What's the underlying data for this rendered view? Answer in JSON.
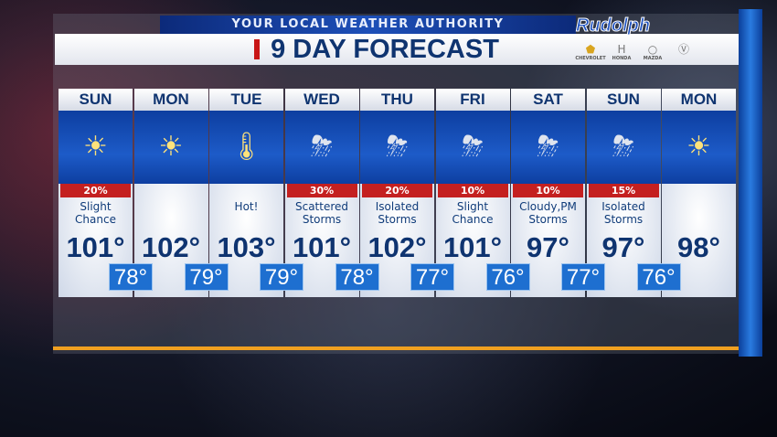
{
  "header": {
    "tagline": "YOUR LOCAL WEATHER AUTHORITY",
    "title": "9 DAY FORECAST",
    "sponsor": "Rudolph",
    "sponsor_brands": [
      "CHEVROLET",
      "HONDA",
      "MAZDA",
      "VW"
    ]
  },
  "colors": {
    "accent_red": "#c42020",
    "accent_blue": "#1e6fd0",
    "title_navy": "#0f3470",
    "divider": "#f0a020"
  },
  "days": [
    {
      "day": "SUN",
      "icon": "sunny-hazy",
      "pct": "20%",
      "desc": "Slight\nChance",
      "high": "101°",
      "low": "78°"
    },
    {
      "day": "MON",
      "icon": "sunny-hazy",
      "pct": "",
      "desc": "",
      "high": "102°",
      "low": "79°"
    },
    {
      "day": "TUE",
      "icon": "hot-thermometer-sun",
      "pct": "",
      "desc": "Hot!",
      "high": "103°",
      "low": "79°"
    },
    {
      "day": "WED",
      "icon": "thunderstorm",
      "pct": "30%",
      "desc": "Scattered\nStorms",
      "high": "101°",
      "low": "78°"
    },
    {
      "day": "THU",
      "icon": "thunderstorm",
      "pct": "20%",
      "desc": "Isolated\nStorms",
      "high": "102°",
      "low": "77°"
    },
    {
      "day": "FRI",
      "icon": "thunderstorm",
      "pct": "10%",
      "desc": "Slight\nChance",
      "high": "101°",
      "low": "76°"
    },
    {
      "day": "SAT",
      "icon": "thunderstorm",
      "pct": "10%",
      "desc": "Cloudy,PM\nStorms",
      "high": "97°",
      "low": "77°"
    },
    {
      "day": "SUN",
      "icon": "thunderstorm",
      "pct": "15%",
      "desc": "Isolated\nStorms",
      "high": "97°",
      "low": "76°"
    },
    {
      "day": "MON",
      "icon": "sunny-hazy",
      "pct": "",
      "desc": "",
      "high": "98°",
      "low": ""
    }
  ]
}
